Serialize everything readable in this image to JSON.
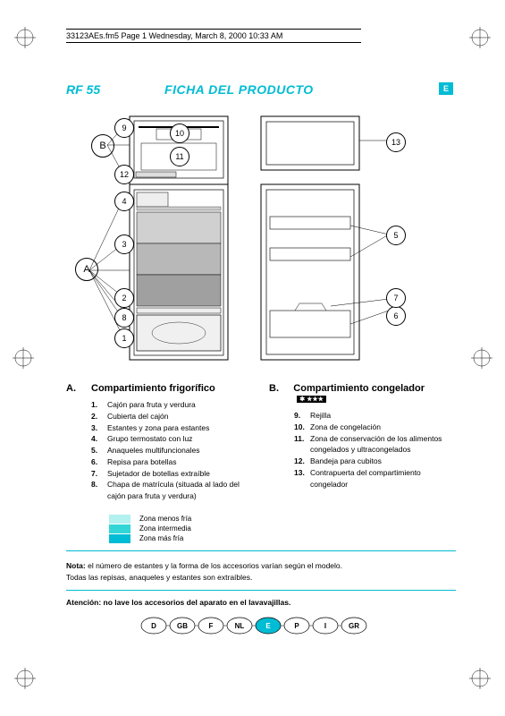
{
  "header": "33123AEs.fm5  Page 1  Wednesday, March 8, 2000  10:33 AM",
  "model": "RF 55",
  "title": "FICHA DEL PRODUCTO",
  "lang_badge": "E",
  "diagram": {
    "big_labels": [
      "A",
      "B"
    ],
    "callouts": [
      "1",
      "2",
      "3",
      "4",
      "5",
      "6",
      "7",
      "8",
      "9",
      "10",
      "11",
      "12",
      "13"
    ]
  },
  "sectionA": {
    "letter": "A.",
    "heading": "Compartimiento frigorífico",
    "items": [
      {
        "n": "1.",
        "t": "Cajón para fruta y verdura"
      },
      {
        "n": "2.",
        "t": "Cubierta del cajón"
      },
      {
        "n": "3.",
        "t": "Estantes y zona para estantes"
      },
      {
        "n": "4.",
        "t": "Grupo termostato con luz"
      },
      {
        "n": "5.",
        "t": "Anaqueles multifuncionales"
      },
      {
        "n": "6.",
        "t": "Repisa para botellas"
      },
      {
        "n": "7.",
        "t": "Sujetador de botellas extraíble"
      },
      {
        "n": "8.",
        "t": "Chapa de matrícula (situada al lado del cajón para fruta y verdura)"
      }
    ]
  },
  "sectionB": {
    "letter": "B.",
    "heading": "Compartimiento congelador",
    "star_badge": "✱ ★★★",
    "items": [
      {
        "n": "9.",
        "t": "Rejilla"
      },
      {
        "n": "10.",
        "t": "Zona de congelación"
      },
      {
        "n": "11.",
        "t": "Zona de conservación de los alimentos congelados y  ultracongelados"
      },
      {
        "n": "12.",
        "t": "Bandeja para cubitos"
      },
      {
        "n": "13.",
        "t": "Contrapuerta del compartimiento congelador"
      }
    ]
  },
  "legend": [
    {
      "color": "#b3f0f0",
      "label": "Zona menos fría"
    },
    {
      "color": "#33d6d6",
      "label": "Zona intermedia"
    },
    {
      "color": "#00bcd4",
      "label": "Zona más fría"
    }
  ],
  "note_bold": "Nota:",
  "note_rest": " el número de estantes y la forma de los accesorios varían según el modelo.",
  "note_line2": "Todas las repisas, anaqueles y estantes son extraíbles.",
  "warning": "Atención: no lave los accesorios del aparato en el lavavajillas.",
  "languages": [
    "D",
    "GB",
    "F",
    "NL",
    "E",
    "P",
    "I",
    "GR"
  ],
  "lang_active_index": 4,
  "colors": {
    "accent": "#00bcd4",
    "swatch1": "#b3f0f0",
    "swatch2": "#33d6d6",
    "swatch3": "#00bcd4"
  }
}
